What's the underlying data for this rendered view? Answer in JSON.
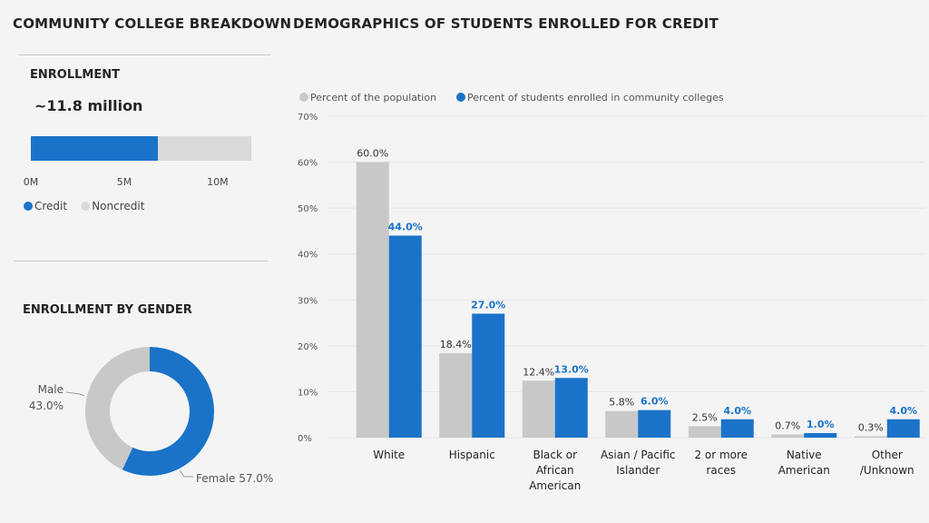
{
  "titles": {
    "left": "COMMUNITY COLLEGE BREAKDOWN",
    "right": "DEMOGRAPHICS OF STUDENTS ENROLLED FOR CREDIT"
  },
  "colors": {
    "blue": "#1a73c8",
    "gray": "#c8c8c8",
    "light_gray": "#d9d9d9"
  },
  "chart_data": [
    {
      "type": "bar",
      "orientation": "horizontal-stacked",
      "title": "ENROLLMENT",
      "headline": "~11.8 million",
      "categories": [
        "Enrollment"
      ],
      "series": [
        {
          "name": "Credit",
          "values": [
            6.8
          ],
          "color": "#1a73c8"
        },
        {
          "name": "Noncredit",
          "values": [
            5.0
          ],
          "color": "#d9d9d9"
        }
      ],
      "xlim": [
        0,
        11.8
      ],
      "ticks": [
        {
          "v": 0,
          "label": "0M"
        },
        {
          "v": 5,
          "label": "5M"
        },
        {
          "v": 10,
          "label": "10M"
        }
      ],
      "legend": "bottom-left"
    },
    {
      "type": "pie",
      "style": "donut",
      "title": "ENROLLMENT BY GENDER",
      "slices": [
        {
          "name": "Female",
          "value": 57.0,
          "label": "Female 57.0%",
          "color": "#1a73c8"
        },
        {
          "name": "Male",
          "value": 43.0,
          "label_name": "Male",
          "label_value": "43.0%",
          "color": "#c8c8c8"
        }
      ]
    },
    {
      "type": "bar",
      "categories": [
        [
          "White"
        ],
        [
          "Hispanic"
        ],
        [
          "Black or",
          "African",
          "American"
        ],
        [
          "Asian / Pacific",
          "Islander"
        ],
        [
          "2 or more",
          "races"
        ],
        [
          "Native",
          "American"
        ],
        [
          "Other",
          "/Unknown"
        ]
      ],
      "series": [
        {
          "name": "Percent of the population",
          "color": "#c8c8c8",
          "values": [
            60.0,
            18.4,
            12.4,
            5.8,
            2.5,
            0.7,
            0.3
          ]
        },
        {
          "name": "Percent of students enrolled in community colleges",
          "color": "#1a73c8",
          "values": [
            44.0,
            27.0,
            13.0,
            6.0,
            4.0,
            1.0,
            4.0
          ]
        }
      ],
      "ylim": [
        0,
        70
      ],
      "yticks": [
        "0%",
        "10%",
        "20%",
        "30%",
        "40%",
        "50%",
        "60%",
        "70%"
      ],
      "grid": true,
      "legend": "top-left"
    }
  ]
}
